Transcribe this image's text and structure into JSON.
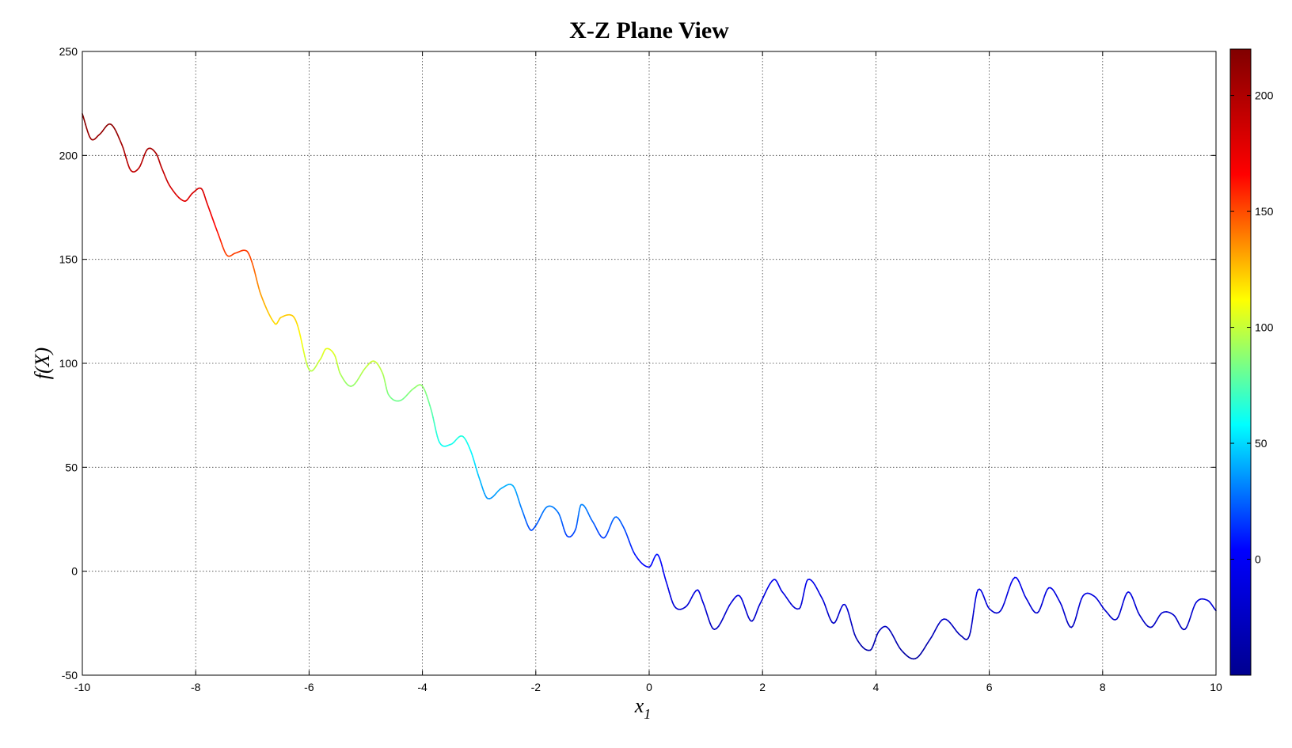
{
  "chart_data": {
    "type": "line",
    "title": "X-Z Plane View",
    "xlabel": "x",
    "xlabel_subscript": "1",
    "ylabel": "f(X)",
    "xlim": [
      -10,
      10
    ],
    "ylim": [
      -50,
      250
    ],
    "xticks": [
      -10,
      -8,
      -6,
      -4,
      -2,
      0,
      2,
      4,
      6,
      8,
      10
    ],
    "yticks": [
      -50,
      0,
      50,
      100,
      150,
      200,
      250
    ],
    "grid": true,
    "colormap": "jet",
    "colorbar": {
      "range": [
        -50,
        220
      ],
      "ticks": [
        0,
        50,
        100,
        150,
        200
      ],
      "colors": [
        "#00008f",
        "#0000ff",
        "#00ffff",
        "#ffff00",
        "#ff0000",
        "#800000"
      ]
    },
    "series": [
      {
        "x": [
          -10,
          -9.85,
          -9.7,
          -9.5,
          -9.3,
          -9.15,
          -9.0,
          -8.85,
          -8.7,
          -8.6,
          -8.45,
          -8.2,
          -8.05,
          -7.9,
          -7.8,
          -7.6,
          -7.45,
          -7.3,
          -7.1,
          -7.0,
          -6.85,
          -6.6,
          -6.5,
          -6.3,
          -6.2,
          -6.0,
          -5.8,
          -5.7,
          -5.55,
          -5.45,
          -5.25,
          -5.0,
          -4.85,
          -4.7,
          -4.6,
          -4.4,
          -4.15,
          -4.0,
          -3.85,
          -3.7,
          -3.5,
          -3.3,
          -3.15,
          -3.0,
          -2.85,
          -2.6,
          -2.4,
          -2.25,
          -2.1,
          -2.0,
          -1.8,
          -1.6,
          -1.45,
          -1.3,
          -1.2,
          -1.0,
          -0.8,
          -0.6,
          -0.45,
          -0.25,
          0.0,
          0.15,
          0.3,
          0.45,
          0.65,
          0.85,
          0.95,
          1.15,
          1.45,
          1.6,
          1.8,
          1.95,
          2.2,
          2.35,
          2.65,
          2.8,
          3.05,
          3.25,
          3.45,
          3.65,
          3.9,
          4.05,
          4.2,
          4.45,
          4.7,
          4.95,
          5.2,
          5.5,
          5.65,
          5.8,
          6.0,
          6.2,
          6.45,
          6.65,
          6.85,
          7.05,
          7.25,
          7.45,
          7.65,
          7.85,
          8.05,
          8.25,
          8.45,
          8.65,
          8.85,
          9.05,
          9.25,
          9.45,
          9.65,
          9.85,
          10.0
        ],
        "y": [
          220,
          208,
          210,
          215,
          205,
          193,
          194,
          203,
          201,
          194,
          185,
          178,
          182,
          184,
          177,
          162,
          152,
          153,
          154,
          148,
          133,
          119,
          122,
          123,
          118,
          97,
          102,
          107,
          104,
          95,
          89,
          98,
          101,
          95,
          85,
          82,
          88,
          89,
          78,
          62,
          61,
          65,
          58,
          45,
          35,
          40,
          41,
          30,
          20,
          22,
          31,
          28,
          17,
          20,
          32,
          24,
          16,
          26,
          21,
          8,
          2,
          8,
          -5,
          -17,
          -17,
          -9,
          -15,
          -28,
          -15,
          -12,
          -24,
          -16,
          -4,
          -10,
          -18,
          -4,
          -13,
          -25,
          -16,
          -32,
          -38,
          -29,
          -27,
          -38,
          -42,
          -33,
          -23,
          -31,
          -31,
          -9,
          -18,
          -19,
          -3,
          -13,
          -20,
          -8,
          -15,
          -27,
          -12,
          -12,
          -19,
          -23,
          -10,
          -21,
          -27,
          -20,
          -21,
          -28,
          -15,
          -14,
          -19
        ]
      }
    ]
  }
}
